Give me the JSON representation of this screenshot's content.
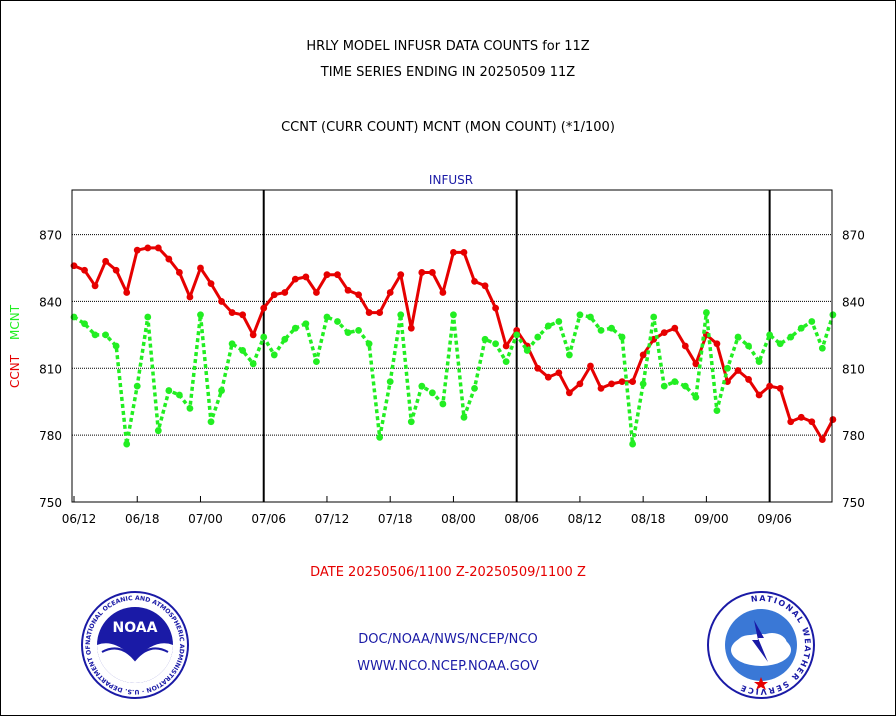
{
  "header": {
    "title_line1": "HRLY MODEL INFUSR DATA COUNTS for 11Z",
    "title_line2": "TIME SERIES ENDING IN 20250509 11Z",
    "subtitle": "CCNT (CURR COUNT) MCNT (MON COUNT) (*1/100)"
  },
  "footer": {
    "date_range": "DATE 20250506/1100 Z-20250509/1100 Z",
    "link1": "DOC/NOAA/NWS/NCEP/NCO",
    "link2": "WWW.NCO.NCEP.NOAA.GOV"
  },
  "logos": {
    "noaa_text": "NOAA",
    "noaa_ring_text": "NATIONAL OCEANIC AND ATMOSPHERIC ADMINISTRATION · U.S. DEPARTMENT OF COMMERCE ·",
    "nws_ring_text": "NATIONAL WEATHER SERVICE"
  },
  "colors": {
    "ccnt": "#e60000",
    "mcnt": "#22ee22",
    "label": "#1a1aa6",
    "grid": "#000000"
  },
  "chart_data": {
    "type": "line",
    "title": "INFUSR",
    "ylabel_left": "CCNT",
    "ylabel_right": "MCNT",
    "ylim": [
      750,
      890
    ],
    "yticks": [
      750,
      780,
      810,
      840,
      870
    ],
    "xticks": [
      "06/12",
      "06/18",
      "07/00",
      "07/06",
      "07/12",
      "07/18",
      "08/00",
      "08/06",
      "08/12",
      "08/18",
      "09/00",
      "09/06"
    ],
    "day_boundaries": [
      "07/06",
      "08/06",
      "09/06"
    ],
    "x_count": 73,
    "series": [
      {
        "name": "CCNT",
        "style": "solid",
        "values": [
          856,
          854,
          847,
          858,
          854,
          844,
          863,
          864,
          864,
          859,
          853,
          842,
          855,
          848,
          840,
          835,
          834,
          825,
          837,
          843,
          844,
          850,
          851,
          844,
          852,
          852,
          845,
          843,
          835,
          835,
          844,
          852,
          828,
          853,
          853,
          844,
          862,
          862,
          849,
          847,
          837,
          820,
          827,
          820,
          810,
          806,
          808,
          799,
          803,
          811,
          801,
          803,
          804,
          804,
          816,
          823,
          826,
          828,
          820,
          812,
          825,
          821,
          804,
          809,
          805,
          798,
          802,
          801,
          786,
          788,
          786,
          778,
          787
        ]
      },
      {
        "name": "MCNT",
        "style": "dotted",
        "values": [
          833,
          830,
          825,
          825,
          820,
          776,
          802,
          833,
          782,
          800,
          798,
          792,
          834,
          786,
          800,
          821,
          818,
          812,
          824,
          816,
          823,
          828,
          830,
          813,
          833,
          831,
          826,
          827,
          821,
          779,
          804,
          834,
          786,
          802,
          799,
          794,
          834,
          788,
          801,
          823,
          821,
          813,
          825,
          818,
          824,
          829,
          831,
          816,
          834,
          833,
          827,
          828,
          824,
          776,
          803,
          833,
          802,
          804,
          802,
          797,
          835,
          791,
          810,
          824,
          820,
          813,
          825,
          821,
          824,
          828,
          831,
          819,
          834
        ]
      }
    ]
  }
}
